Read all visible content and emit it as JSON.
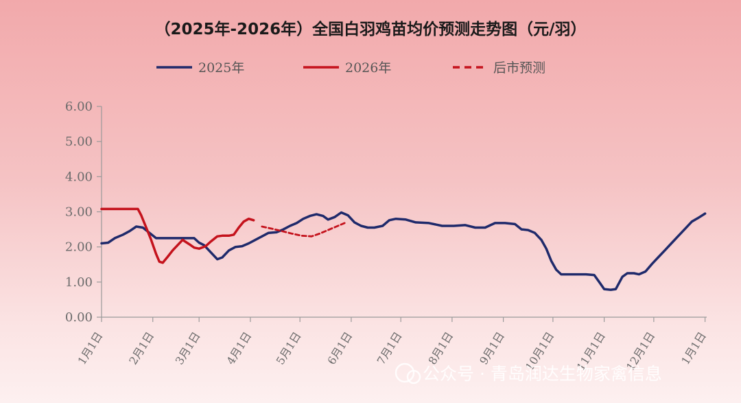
{
  "chart_data": {
    "type": "line",
    "title": "（2025年-2026年）全国白羽鸡苗均价预测走势图（元/羽）",
    "ylim": [
      0,
      6
    ],
    "yticks": [
      "0.00",
      "1.00",
      "2.00",
      "3.00",
      "4.00",
      "5.00",
      "6.00"
    ],
    "x_categories": [
      "1月1日",
      "2月1日",
      "3月1日",
      "4月1日",
      "5月1日",
      "6月1日",
      "7月1日",
      "8月1日",
      "9月1日",
      "10月1日",
      "11月1日",
      "12月1日",
      "1月1日"
    ],
    "legend_position": "top",
    "grid": false,
    "series": [
      {
        "name": "2025年",
        "color": "#1f2a6b",
        "style": "solid",
        "points": [
          [
            0,
            2.1
          ],
          [
            4,
            2.12
          ],
          [
            8,
            2.25
          ],
          [
            13,
            2.35
          ],
          [
            17,
            2.45
          ],
          [
            21,
            2.58
          ],
          [
            25,
            2.55
          ],
          [
            29,
            2.4
          ],
          [
            33,
            2.25
          ],
          [
            38,
            2.25
          ],
          [
            42,
            2.25
          ],
          [
            47,
            2.25
          ],
          [
            52,
            2.25
          ],
          [
            56,
            2.25
          ],
          [
            59,
            2.12
          ],
          [
            62,
            2.05
          ],
          [
            66,
            1.85
          ],
          [
            70,
            1.65
          ],
          [
            73,
            1.7
          ],
          [
            77,
            1.9
          ],
          [
            81,
            2.0
          ],
          [
            85,
            2.02
          ],
          [
            89,
            2.1
          ],
          [
            93,
            2.2
          ],
          [
            97,
            2.3
          ],
          [
            101,
            2.4
          ],
          [
            106,
            2.42
          ],
          [
            110,
            2.5
          ],
          [
            114,
            2.6
          ],
          [
            118,
            2.68
          ],
          [
            122,
            2.8
          ],
          [
            126,
            2.88
          ],
          [
            130,
            2.93
          ],
          [
            134,
            2.88
          ],
          [
            137,
            2.78
          ],
          [
            141,
            2.85
          ],
          [
            145,
            2.98
          ],
          [
            149,
            2.9
          ],
          [
            153,
            2.7
          ],
          [
            157,
            2.6
          ],
          [
            161,
            2.55
          ],
          [
            165,
            2.55
          ],
          [
            170,
            2.6
          ],
          [
            174,
            2.76
          ],
          [
            178,
            2.8
          ],
          [
            184,
            2.78
          ],
          [
            190,
            2.7
          ],
          [
            198,
            2.68
          ],
          [
            206,
            2.6
          ],
          [
            213,
            2.6
          ],
          [
            220,
            2.62
          ],
          [
            226,
            2.55
          ],
          [
            232,
            2.55
          ],
          [
            238,
            2.68
          ],
          [
            244,
            2.68
          ],
          [
            250,
            2.65
          ],
          [
            254,
            2.5
          ],
          [
            258,
            2.48
          ],
          [
            262,
            2.4
          ],
          [
            266,
            2.2
          ],
          [
            269,
            1.95
          ],
          [
            272,
            1.6
          ],
          [
            275,
            1.35
          ],
          [
            278,
            1.22
          ],
          [
            283,
            1.22
          ],
          [
            288,
            1.22
          ],
          [
            293,
            1.22
          ],
          [
            298,
            1.2
          ],
          [
            301,
            1.0
          ],
          [
            304,
            0.8
          ],
          [
            308,
            0.78
          ],
          [
            311,
            0.8
          ],
          [
            315,
            1.15
          ],
          [
            318,
            1.25
          ],
          [
            322,
            1.25
          ],
          [
            325,
            1.22
          ],
          [
            329,
            1.3
          ],
          [
            333,
            1.52
          ],
          [
            337,
            1.72
          ],
          [
            341,
            1.92
          ],
          [
            345,
            2.12
          ],
          [
            349,
            2.32
          ],
          [
            353,
            2.52
          ],
          [
            357,
            2.72
          ],
          [
            361,
            2.83
          ],
          [
            365,
            2.95
          ]
        ]
      },
      {
        "name": "2026年",
        "color": "#c4121c",
        "style": "solid",
        "points": [
          [
            0,
            3.08
          ],
          [
            6,
            3.08
          ],
          [
            12,
            3.08
          ],
          [
            18,
            3.08
          ],
          [
            22,
            3.08
          ],
          [
            24,
            2.9
          ],
          [
            27,
            2.55
          ],
          [
            30,
            2.2
          ],
          [
            33,
            1.8
          ],
          [
            35,
            1.58
          ],
          [
            37,
            1.55
          ],
          [
            40,
            1.72
          ],
          [
            43,
            1.9
          ],
          [
            46,
            2.05
          ],
          [
            49,
            2.2
          ],
          [
            53,
            2.08
          ],
          [
            56,
            1.98
          ],
          [
            59,
            1.95
          ],
          [
            63,
            2.02
          ],
          [
            66,
            2.15
          ],
          [
            70,
            2.3
          ],
          [
            73,
            2.32
          ],
          [
            77,
            2.32
          ],
          [
            80,
            2.35
          ],
          [
            83,
            2.55
          ],
          [
            86,
            2.72
          ],
          [
            89,
            2.8
          ],
          [
            92,
            2.76
          ]
        ]
      },
      {
        "name": "后市预测",
        "color": "#c4121c",
        "style": "dashed",
        "points": [
          [
            97,
            2.58
          ],
          [
            103,
            2.52
          ],
          [
            109,
            2.45
          ],
          [
            115,
            2.38
          ],
          [
            121,
            2.32
          ],
          [
            127,
            2.3
          ],
          [
            132,
            2.38
          ],
          [
            137,
            2.48
          ],
          [
            142,
            2.58
          ],
          [
            147,
            2.68
          ]
        ]
      }
    ]
  },
  "watermark": "公众号 · 青岛润达生物家禽信息"
}
